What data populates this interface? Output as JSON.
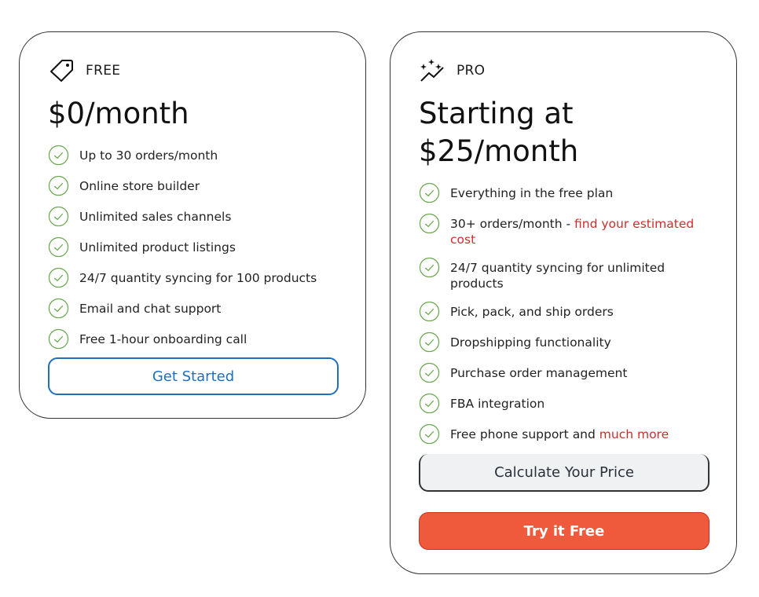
{
  "free": {
    "tier": "FREE",
    "icon": "tag-icon",
    "price": "$0/month",
    "features": [
      "Up to 30 orders/month",
      "Online store builder",
      "Unlimited sales channels",
      "Unlimited product listings",
      "24/7 quantity syncing for 100 products",
      "Email and chat support",
      "Free 1-hour onboarding call"
    ],
    "cta": "Get Started"
  },
  "pro": {
    "tier": "PRO",
    "icon": "sparkle-chart-icon",
    "price": "Starting at $25/month",
    "features": [
      {
        "text": "Everything in the free plan"
      },
      {
        "text": "30+ orders/month - ",
        "link": "find your estimated cost"
      },
      {
        "text": "24/7 quantity syncing for unlimited products"
      },
      {
        "text": "Pick, pack, and ship orders"
      },
      {
        "text": "Dropshipping functionality"
      },
      {
        "text": "Purchase order management"
      },
      {
        "text": "FBA integration"
      },
      {
        "text": "Free phone support and ",
        "link": "much more"
      }
    ],
    "calc": "Calculate Your Price",
    "cta": "Try it Free"
  },
  "colors": {
    "check": "#6aa84f",
    "link": "#c9302c",
    "primary_blue": "#1f6fbf",
    "cta_orange": "#f05a3c"
  }
}
